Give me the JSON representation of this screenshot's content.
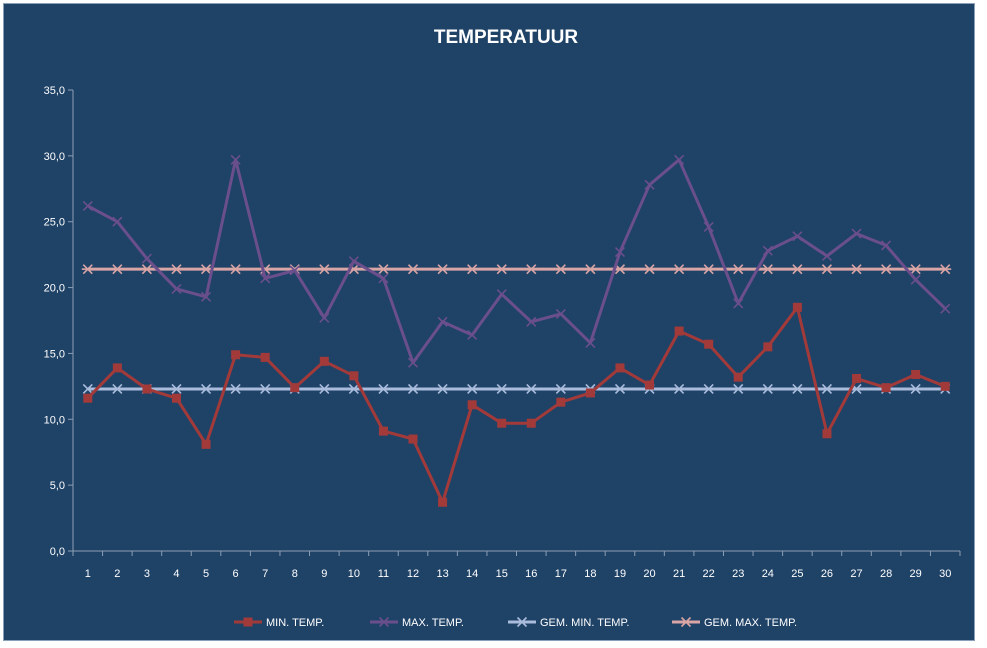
{
  "chart_data": {
    "type": "line",
    "title": "TEMPERATUUR",
    "xlabel": "",
    "ylabel": "",
    "categories": [
      "1",
      "2",
      "3",
      "4",
      "5",
      "6",
      "7",
      "8",
      "9",
      "10",
      "11",
      "12",
      "13",
      "14",
      "15",
      "16",
      "17",
      "18",
      "19",
      "20",
      "21",
      "22",
      "23",
      "24",
      "25",
      "26",
      "27",
      "28",
      "29",
      "30"
    ],
    "y_tick_labels": [
      "0,0",
      "5,0",
      "10,0",
      "15,0",
      "20,0",
      "25,0",
      "30,0",
      "35,0"
    ],
    "ylim": [
      0,
      35
    ],
    "grid": false,
    "legend_position": "bottom",
    "series": [
      {
        "name": "MIN. TEMP.",
        "color": "#a33a3a",
        "marker": "square",
        "values": [
          11.6,
          13.9,
          12.3,
          11.6,
          8.1,
          14.9,
          14.7,
          12.4,
          14.4,
          13.3,
          9.1,
          8.5,
          3.7,
          11.1,
          9.7,
          9.7,
          11.3,
          12.0,
          13.9,
          12.6,
          16.7,
          15.7,
          13.2,
          15.5,
          18.5,
          8.9,
          13.1,
          12.4,
          13.4,
          12.5
        ]
      },
      {
        "name": "MAX. TEMP.",
        "color": "#6a4f8c",
        "marker": "x",
        "values": [
          26.2,
          25.0,
          22.2,
          19.9,
          19.3,
          29.7,
          20.7,
          21.3,
          17.7,
          22.0,
          20.7,
          14.3,
          17.4,
          16.4,
          19.5,
          17.4,
          18.0,
          15.8,
          22.7,
          27.8,
          29.7,
          24.6,
          18.8,
          22.8,
          23.9,
          22.4,
          24.1,
          23.2,
          20.6,
          18.4
        ]
      },
      {
        "name": "GEM. MIN. TEMP.",
        "color": "#a9bcdc",
        "marker": "x",
        "values": [
          12.3,
          12.3,
          12.3,
          12.3,
          12.3,
          12.3,
          12.3,
          12.3,
          12.3,
          12.3,
          12.3,
          12.3,
          12.3,
          12.3,
          12.3,
          12.3,
          12.3,
          12.3,
          12.3,
          12.3,
          12.3,
          12.3,
          12.3,
          12.3,
          12.3,
          12.3,
          12.3,
          12.3,
          12.3,
          12.3
        ]
      },
      {
        "name": "GEM. MAX. TEMP.",
        "color": "#d9a5a5",
        "marker": "star",
        "values": [
          21.4,
          21.4,
          21.4,
          21.4,
          21.4,
          21.4,
          21.4,
          21.4,
          21.4,
          21.4,
          21.4,
          21.4,
          21.4,
          21.4,
          21.4,
          21.4,
          21.4,
          21.4,
          21.4,
          21.4,
          21.4,
          21.4,
          21.4,
          21.4,
          21.4,
          21.4,
          21.4,
          21.4,
          21.4,
          21.4
        ]
      }
    ]
  }
}
